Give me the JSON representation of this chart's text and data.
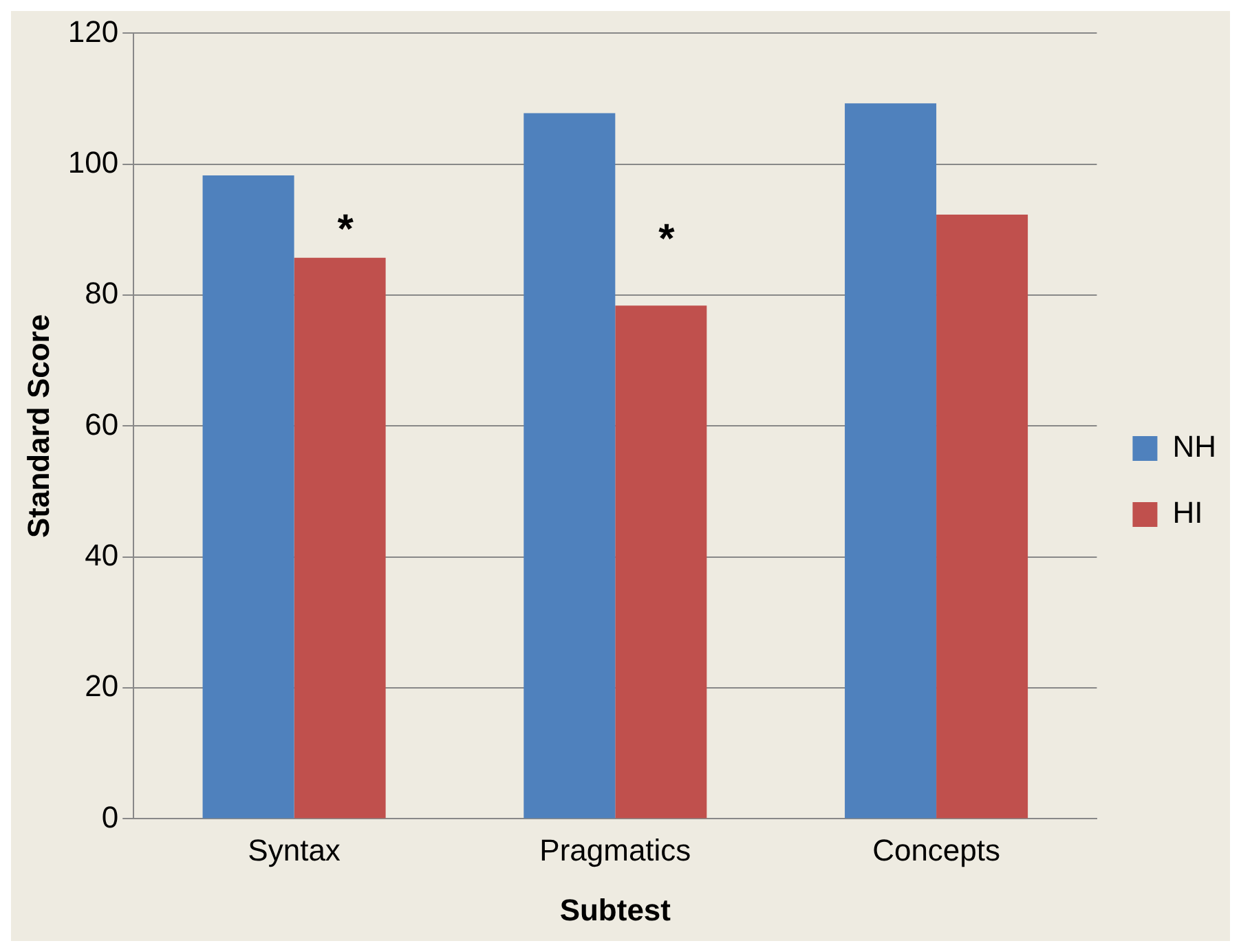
{
  "chart_data": {
    "type": "bar",
    "xlabel": "Subtest",
    "ylabel": "Standard Score",
    "categories": [
      "Syntax",
      "Pragmatics",
      "Concepts"
    ],
    "series": [
      {
        "name": "NH",
        "color": "#4f81bd",
        "values": [
          98.3,
          107.8,
          109.3
        ]
      },
      {
        "name": "HI",
        "color": "#c0504d",
        "values": [
          85.7,
          78.4,
          92.3
        ]
      }
    ],
    "ylim": [
      0,
      120
    ],
    "yticks": [
      0,
      20,
      40,
      60,
      80,
      100,
      120
    ],
    "grid": "y",
    "legend": "right",
    "annotations": [
      {
        "text": "*",
        "x": "Syntax",
        "y": 91
      },
      {
        "text": "*",
        "x": "Pragmatics",
        "y": 89.5
      }
    ]
  }
}
